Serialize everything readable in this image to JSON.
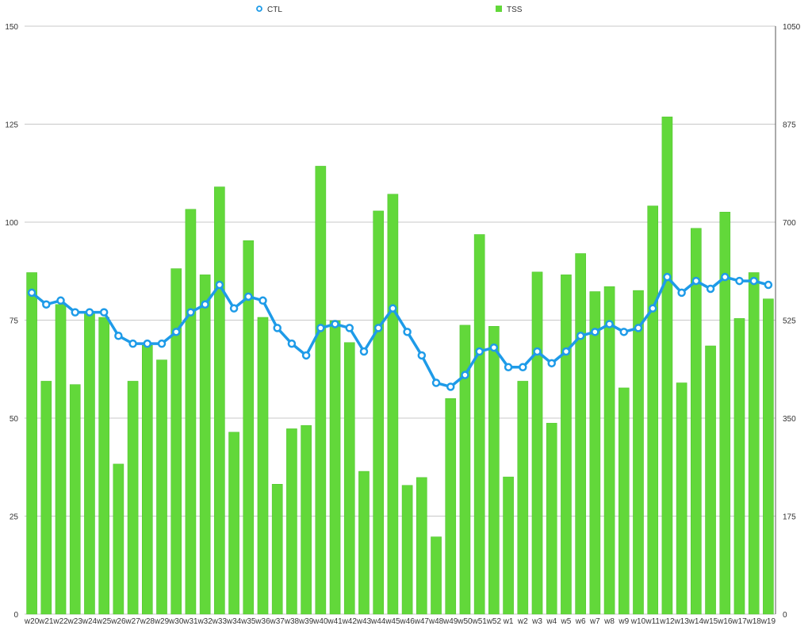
{
  "legend": {
    "ctl_label": "CTL",
    "tss_label": "TSS",
    "position": "top"
  },
  "colors": {
    "bar": "#62d83a",
    "bar_stroke": "#4cc22a",
    "line": "#1e9be8",
    "point_fill": "#ffffff",
    "grid": "#c8c8c8",
    "axis": "#555555"
  },
  "chart_data": {
    "type": "bar+line",
    "title": "",
    "xlabel": "",
    "ylabel": "",
    "ylabel_right": "",
    "grid": true,
    "categories": [
      "w20",
      "w21",
      "w22",
      "w23",
      "w24",
      "w25",
      "w26",
      "w27",
      "w28",
      "w29",
      "w30",
      "w31",
      "w32",
      "w33",
      "w34",
      "w35",
      "w36",
      "w37",
      "w38",
      "w39",
      "w40",
      "w41",
      "w42",
      "w43",
      "w44",
      "w45",
      "w46",
      "w47",
      "w48",
      "w49",
      "w50",
      "w51",
      "w52",
      "w1",
      "w2",
      "w3",
      "w4",
      "w5",
      "w6",
      "w7",
      "w8",
      "w9",
      "w10",
      "w11",
      "w12",
      "w13",
      "w14",
      "w15",
      "w16",
      "w17",
      "w18",
      "w19"
    ],
    "y_left": {
      "range": [
        0,
        150
      ],
      "ticks": [
        0,
        25,
        50,
        75,
        100,
        125,
        150
      ]
    },
    "y_right": {
      "range": [
        0,
        1050
      ],
      "ticks": [
        0,
        175,
        350,
        525,
        700,
        875,
        1050
      ]
    },
    "series": [
      {
        "name": "TSS",
        "type": "bar",
        "axis": "right",
        "values": [
          610,
          416,
          553,
          410,
          540,
          530,
          268,
          416,
          480,
          454,
          617,
          723,
          606,
          763,
          325,
          667,
          530,
          232,
          331,
          337,
          800,
          524,
          485,
          255,
          720,
          750,
          230,
          244,
          138,
          385,
          516,
          678,
          514,
          245,
          416,
          611,
          341,
          606,
          644,
          576,
          585,
          404,
          578,
          729,
          888,
          413,
          689,
          479,
          718,
          528,
          610,
          563
        ]
      },
      {
        "name": "CTL",
        "type": "line",
        "axis": "left",
        "values": [
          82,
          79,
          80,
          77,
          77,
          77,
          71,
          69,
          69,
          69,
          72,
          77,
          79,
          84,
          78,
          81,
          80,
          73,
          69,
          66,
          73,
          74,
          73,
          67,
          73,
          78,
          72,
          66,
          59,
          58,
          61,
          67,
          68,
          63,
          63,
          67,
          64,
          67,
          71,
          72,
          74,
          72,
          73,
          78,
          86,
          82,
          85,
          83,
          86,
          85,
          85,
          84
        ]
      }
    ]
  }
}
